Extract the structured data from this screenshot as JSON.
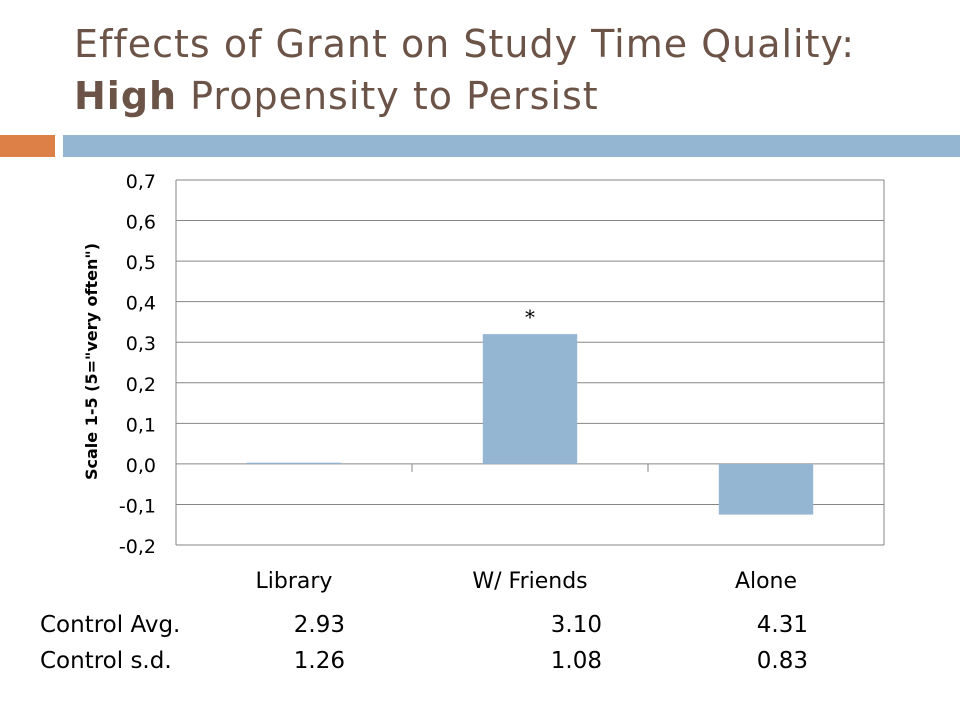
{
  "title": {
    "line1": "Effects of Grant on Study Time Quality:",
    "line2_bold": "High",
    "line2_rest": " Propensity to Persist"
  },
  "chart_data": {
    "type": "bar",
    "categories": [
      "Library",
      "W/ Friends",
      "Alone"
    ],
    "values": [
      0.003,
      0.32,
      -0.125
    ],
    "ylabel": "Scale 1-5 (5=\"very often\")",
    "ylim": [
      -0.2,
      0.7
    ],
    "yticks": [
      "0,7",
      "0,6",
      "0,5",
      "0,4",
      "0,3",
      "0,2",
      "0,1",
      "0,0",
      "-0,1",
      "-0,2"
    ],
    "ytick_values": [
      0.7,
      0.6,
      0.5,
      0.4,
      0.3,
      0.2,
      0.1,
      0.0,
      -0.1,
      -0.2
    ],
    "annotations": [
      {
        "category": "W/ Friends",
        "text": "*"
      }
    ],
    "bar_color": "#94b6d2",
    "grid": true
  },
  "stats": {
    "rows": [
      {
        "label": "Control Avg.",
        "values": [
          "2.93",
          "3.10",
          "4.31"
        ]
      },
      {
        "label": "Control s.d.",
        "values": [
          "1.26",
          "1.08",
          "0.83"
        ]
      }
    ]
  }
}
